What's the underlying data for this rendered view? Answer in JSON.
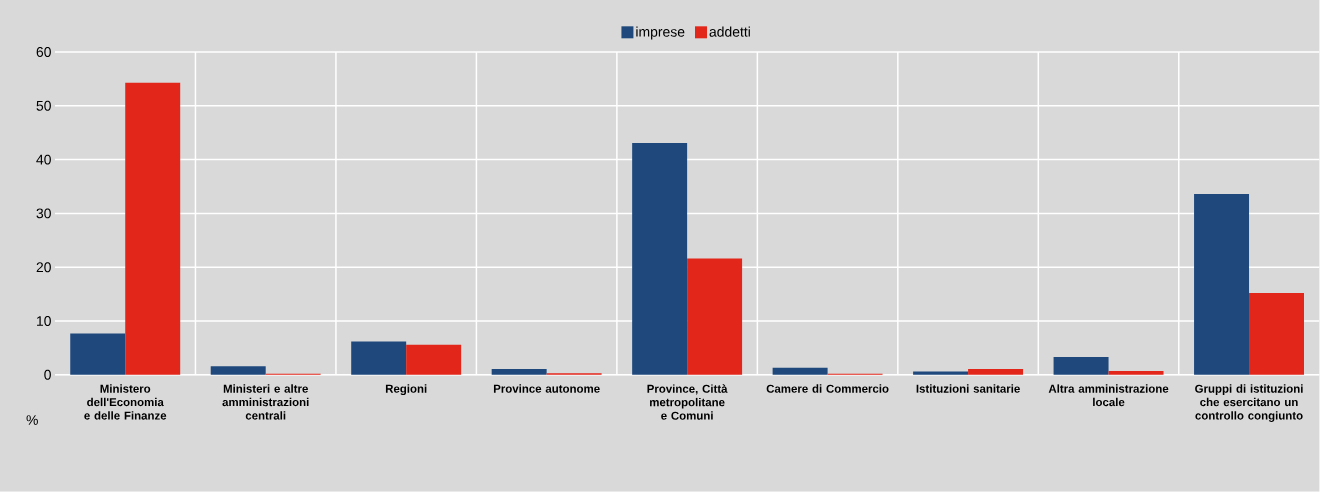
{
  "chart_data": {
    "type": "bar",
    "ylabel": "%",
    "categories": [
      "Ministero dell'Economia e delle Finanze",
      "Ministeri e altre amministrazioni centrali",
      "Regioni",
      "Province autonome",
      "Province, Città metropolitane e Comuni",
      "Camere di Commercio",
      "Istituzioni sanitarie",
      "Altra amministrazione locale",
      "Gruppi di istituzioni che esercitano un controllo congiunto"
    ],
    "series": [
      {
        "name": "imprese",
        "color": "#1f497d",
        "values": [
          7.7,
          1.6,
          6.2,
          1.1,
          43.1,
          1.3,
          0.6,
          3.3,
          33.6
        ]
      },
      {
        "name": "addetti",
        "color": "#e3261a",
        "values": [
          54.3,
          0.2,
          5.6,
          0.3,
          21.6,
          0.2,
          1.1,
          0.7,
          15.2
        ]
      }
    ],
    "ylim": [
      0,
      60
    ],
    "yticks": [
      0,
      10,
      20,
      30,
      40,
      50,
      60
    ],
    "grid": true,
    "legend": "top"
  }
}
